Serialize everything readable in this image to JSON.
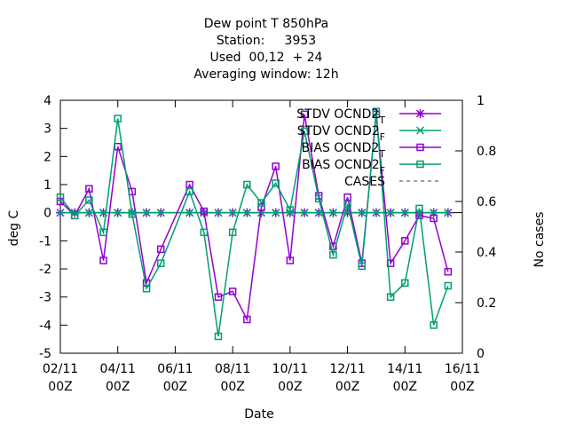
{
  "chart_data": {
    "type": "line",
    "title_lines": [
      "Dew point T 850hPa",
      "Station:     3953",
      "Used  00,12  + 24",
      "Averaging window: 12h"
    ],
    "xlabel": "Date",
    "ylabel": "deg C",
    "y2label": "No cases",
    "ylim": [
      -5,
      4
    ],
    "y2lim": [
      0,
      1
    ],
    "xlim": [
      "2010-11-02 00:00",
      "2010-11-16 00:00"
    ],
    "x_ticks": [
      "02/11\n00Z",
      "04/11\n00Z",
      "06/11\n00Z",
      "08/11\n00Z",
      "10/11\n00Z",
      "12/11\n00Z",
      "14/11\n00Z",
      "16/11\n00Z"
    ],
    "y_ticks": [
      "-5",
      "-4",
      "-3",
      "-2",
      "-1",
      "0",
      "1",
      "2",
      "3",
      "4"
    ],
    "y2_ticks": [
      "0",
      "0.2",
      "0.4",
      "0.6",
      "0.8",
      "1"
    ],
    "zero_line": true,
    "legend_position": "top-right",
    "series": [
      {
        "name": "STDV OCND2_T",
        "legend_label": "STDV OCND2",
        "legend_sub": "T",
        "color": "#9400d3",
        "marker": "star",
        "axis": "y",
        "x": [
          "2010-11-02 00:00",
          "2010-11-02 12:00",
          "2010-11-03 00:00",
          "2010-11-03 12:00",
          "2010-11-04 00:00",
          "2010-11-04 12:00",
          "2010-11-05 00:00",
          "2010-11-05 12:00",
          "2010-11-06 12:00",
          "2010-11-07 00:00",
          "2010-11-07 12:00",
          "2010-11-08 00:00",
          "2010-11-08 12:00",
          "2010-11-09 00:00",
          "2010-11-09 12:00",
          "2010-11-10 00:00",
          "2010-11-10 12:00",
          "2010-11-11 00:00",
          "2010-11-11 12:00",
          "2010-11-12 00:00",
          "2010-11-12 12:00",
          "2010-11-13 00:00",
          "2010-11-13 12:00",
          "2010-11-14 00:00",
          "2010-11-14 12:00",
          "2010-11-15 00:00",
          "2010-11-15 12:00"
        ],
        "y": [
          0,
          0,
          0,
          0,
          0,
          0,
          0,
          0,
          0,
          0,
          0,
          0,
          0,
          0,
          0,
          0,
          0,
          0,
          0,
          0,
          0,
          0,
          0,
          0,
          0,
          0,
          0
        ]
      },
      {
        "name": "STDV OCND2_F",
        "legend_label": "STDV OCND2",
        "legend_sub": "F",
        "color": "#009e73",
        "marker": "x",
        "axis": "y",
        "x": [
          "2010-11-02 00:00",
          "2010-11-02 12:00",
          "2010-11-03 00:00",
          "2010-11-03 12:00",
          "2010-11-04 00:00",
          "2010-11-04 12:00",
          "2010-11-05 00:00",
          "2010-11-05 12:00",
          "2010-11-06 12:00",
          "2010-11-07 00:00",
          "2010-11-07 12:00",
          "2010-11-08 00:00",
          "2010-11-08 12:00",
          "2010-11-09 00:00",
          "2010-11-09 12:00",
          "2010-11-10 00:00",
          "2010-11-10 12:00",
          "2010-11-11 00:00",
          "2010-11-11 12:00",
          "2010-11-12 00:00",
          "2010-11-12 12:00",
          "2010-11-13 00:00",
          "2010-11-13 12:00",
          "2010-11-14 00:00",
          "2010-11-14 12:00",
          "2010-11-15 00:00",
          "2010-11-15 12:00"
        ],
        "y": [
          0,
          0,
          0,
          0,
          0,
          0,
          0,
          0,
          0,
          0,
          0,
          0,
          0,
          0,
          0,
          0,
          0,
          0,
          0,
          0,
          0,
          0,
          0,
          0,
          0,
          0,
          0
        ]
      },
      {
        "name": "BIAS OCND2_T",
        "legend_label": "BIAS OCND2",
        "legend_sub": "T",
        "color": "#9400d3",
        "marker": "square",
        "axis": "y",
        "x": [
          "2010-11-02 00:00",
          "2010-11-02 12:00",
          "2010-11-03 00:00",
          "2010-11-03 12:00",
          "2010-11-04 00:00",
          "2010-11-04 12:00",
          "2010-11-05 00:00",
          "2010-11-05 12:00",
          "2010-11-06 12:00",
          "2010-11-07 00:00",
          "2010-11-07 12:00",
          "2010-11-08 00:00",
          "2010-11-08 12:00",
          "2010-11-09 00:00",
          "2010-11-09 12:00",
          "2010-11-10 00:00",
          "2010-11-10 12:00",
          "2010-11-11 00:00",
          "2010-11-11 12:00",
          "2010-11-12 00:00",
          "2010-11-12 12:00",
          "2010-11-13 00:00",
          "2010-11-13 12:00",
          "2010-11-14 00:00",
          "2010-11-14 12:00",
          "2010-11-15 00:00",
          "2010-11-15 12:00"
        ],
        "y": [
          0.4,
          -0.1,
          0.85,
          -1.7,
          2.35,
          0.75,
          -2.5,
          -1.3,
          1.0,
          0.05,
          -3.0,
          -2.8,
          -3.8,
          0.2,
          1.65,
          -1.7,
          3.5,
          0.6,
          -1.2,
          0.55,
          -1.8,
          3.5,
          -1.8,
          -1.0,
          -0.1,
          -0.2,
          -2.1
        ]
      },
      {
        "name": "BIAS OCND2_F",
        "legend_label": "BIAS OCND2",
        "legend_sub": "F",
        "color": "#009e73",
        "marker": "square",
        "axis": "y",
        "x": [
          "2010-11-02 00:00",
          "2010-11-02 12:00",
          "2010-11-03 00:00",
          "2010-11-03 12:00",
          "2010-11-04 00:00",
          "2010-11-04 12:00",
          "2010-11-05 00:00",
          "2010-11-05 12:00",
          "2010-11-06 12:00",
          "2010-11-07 00:00",
          "2010-11-07 12:00",
          "2010-11-08 00:00",
          "2010-11-08 12:00",
          "2010-11-09 00:00",
          "2010-11-09 12:00",
          "2010-11-10 00:00",
          "2010-11-10 12:00",
          "2010-11-11 00:00",
          "2010-11-11 12:00",
          "2010-11-12 00:00",
          "2010-11-12 12:00",
          "2010-11-13 00:00",
          "2010-11-13 12:00",
          "2010-11-14 00:00",
          "2010-11-14 12:00",
          "2010-11-15 00:00",
          "2010-11-15 12:00"
        ],
        "y": [
          0.55,
          -0.1,
          0.45,
          -0.7,
          3.35,
          -0.05,
          -2.7,
          -1.8,
          0.75,
          -0.7,
          -4.4,
          -0.7,
          1.0,
          0.35,
          1.05,
          0.1,
          2.9,
          0.5,
          -1.5,
          0.3,
          -1.9,
          3.6,
          -3.0,
          -2.5,
          0.15,
          -4.0,
          -2.6
        ]
      },
      {
        "name": "CASES",
        "legend_label": "CASES",
        "legend_sub": "",
        "color": "#808080",
        "marker": "none",
        "dashed": true,
        "axis": "y2",
        "x": [],
        "y": []
      }
    ]
  }
}
